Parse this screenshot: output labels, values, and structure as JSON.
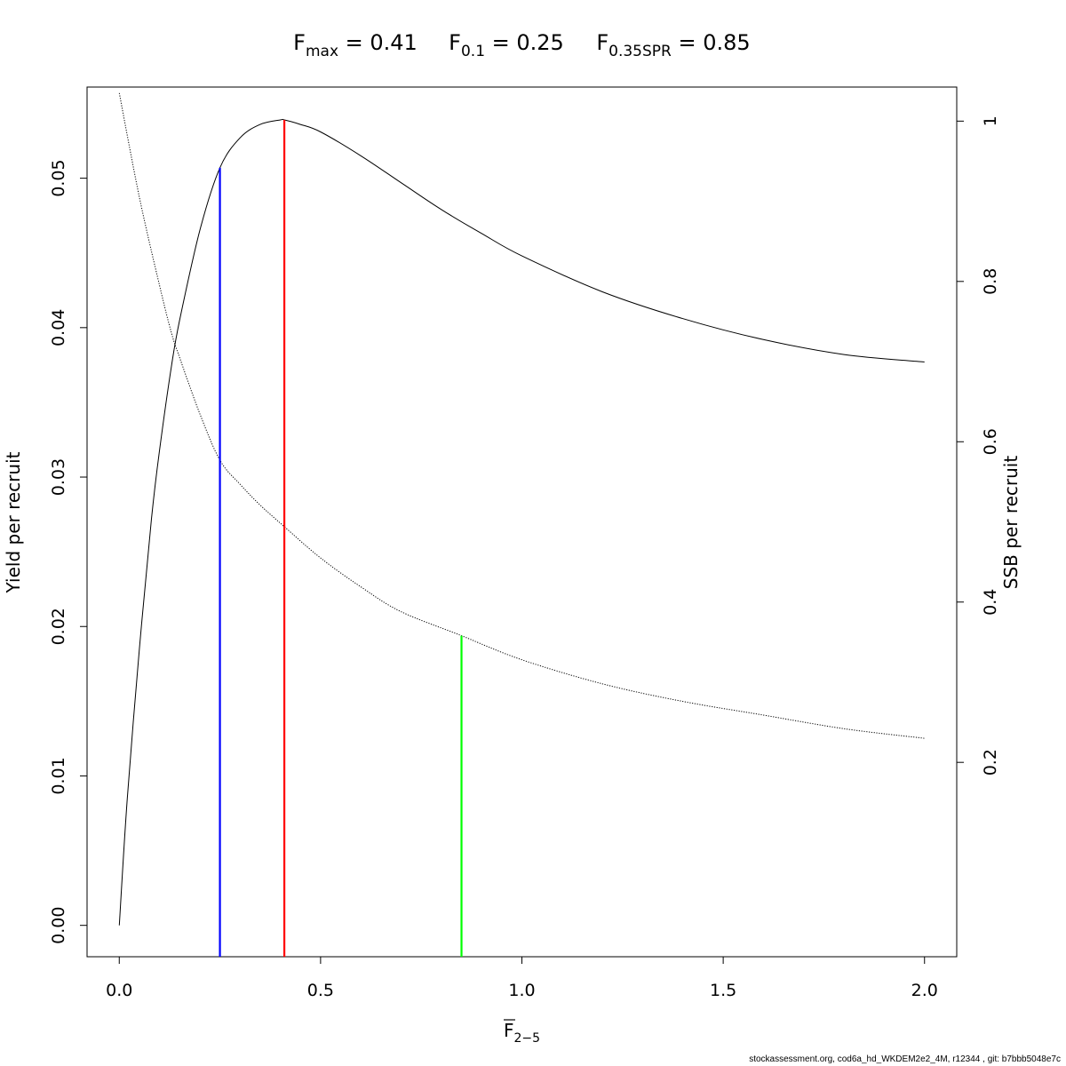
{
  "chart_data": {
    "type": "line",
    "title_parts": [
      {
        "sym": "F",
        "sub": "max",
        "eq": " = 0.41"
      },
      {
        "sym": "F",
        "sub": "0.1",
        "eq": " = 0.25"
      },
      {
        "sym": "F",
        "sub": "0.35SPR",
        "eq": " = 0.85"
      }
    ],
    "xlabel": {
      "sym": "F",
      "sub": "2−5"
    },
    "ylabel_left": "Yield per recruit",
    "ylabel_right": "SSB per recruit",
    "xlim": [
      -0.08,
      2.08
    ],
    "ylim_left": [
      -0.0021,
      0.0561
    ],
    "ylim_right": [
      -0.0425,
      1.0425
    ],
    "x_ticks": [
      0.0,
      0.5,
      1.0,
      1.5,
      2.0
    ],
    "x_tick_labels": [
      "0.0",
      "0.5",
      "1.0",
      "1.5",
      "2.0"
    ],
    "y_left_ticks": [
      0.0,
      0.01,
      0.02,
      0.03,
      0.04,
      0.05
    ],
    "y_left_tick_labels": [
      "0.00",
      "0.01",
      "0.02",
      "0.03",
      "0.04",
      "0.05"
    ],
    "y_right_ticks": [
      0.2,
      0.4,
      0.6,
      0.8,
      1.0
    ],
    "y_right_tick_labels": [
      "0.2",
      "0.4",
      "0.6",
      "0.8",
      "1"
    ],
    "series": [
      {
        "axis": "left",
        "style": "solid",
        "color": "#000000",
        "x": [
          0.0,
          0.02,
          0.05,
          0.08,
          0.1,
          0.13,
          0.15,
          0.2,
          0.25,
          0.3,
          0.35,
          0.4,
          0.41,
          0.45,
          0.5,
          0.6,
          0.7,
          0.8,
          0.9,
          1.0,
          1.2,
          1.4,
          1.6,
          1.8,
          2.0
        ],
        "y": [
          0.0,
          0.0085,
          0.0185,
          0.0272,
          0.0318,
          0.0375,
          0.0405,
          0.0465,
          0.0507,
          0.0527,
          0.0536,
          0.0539,
          0.0539,
          0.0536,
          0.0531,
          0.0515,
          0.0497,
          0.0479,
          0.0463,
          0.0448,
          0.0424,
          0.0406,
          0.0392,
          0.0382,
          0.0377
        ]
      },
      {
        "axis": "right",
        "style": "dotted",
        "color": "#000000",
        "x": [
          0.0,
          0.05,
          0.1,
          0.13,
          0.15,
          0.2,
          0.25,
          0.3,
          0.35,
          0.41,
          0.5,
          0.6,
          0.7,
          0.85,
          1.0,
          1.2,
          1.4,
          1.6,
          1.8,
          2.0
        ],
        "y": [
          1.035,
          0.905,
          0.795,
          0.735,
          0.705,
          0.635,
          0.577,
          0.547,
          0.521,
          0.494,
          0.455,
          0.419,
          0.388,
          0.358,
          0.328,
          0.298,
          0.276,
          0.259,
          0.242,
          0.23
        ]
      }
    ],
    "reference_lines": [
      {
        "x": 0.25,
        "axis": "left",
        "to": 0.0507,
        "color": "#0000ff"
      },
      {
        "x": 0.41,
        "axis": "left",
        "to": 0.0539,
        "color": "#ff0000"
      },
      {
        "x": 0.85,
        "axis": "right",
        "to": 0.358,
        "color": "#00ff00"
      }
    ],
    "grid": false,
    "legend": "none"
  },
  "footer": "stockassessment.org, cod6a_hd_WKDEM2e2_4M, r12344 , git: b7bbb5048e7c"
}
